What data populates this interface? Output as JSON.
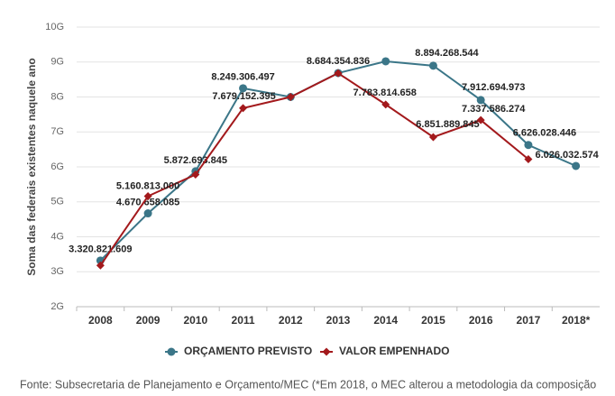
{
  "chart_data": {
    "type": "line",
    "y_label": "Soma das federais existentes naquele ano",
    "categories": [
      "2008",
      "2009",
      "2010",
      "2011",
      "2012",
      "2013",
      "2014",
      "2015",
      "2016",
      "2017",
      "2018*"
    ],
    "series": [
      {
        "name": "ORÇAMENTO PREVISTO",
        "color": "#3b7688",
        "marker": "circle",
        "values": [
          3320821609,
          4670658085,
          5872693845,
          8249306497,
          8000000000,
          8684354836,
          9020000000,
          8894268544,
          7912694973,
          6626028446,
          6026032574
        ],
        "value_labels": [
          "3.320.821.609",
          "4.670.658.085",
          "5.872.693.845",
          "8.249.306.497",
          null,
          "8.684.354.836",
          null,
          "8.894.268.544",
          "7.912.694.973",
          "6.626.028.446",
          "6.026.032.574"
        ]
      },
      {
        "name": "VALOR EMPENHADO",
        "color": "#a3191c",
        "marker": "diamond",
        "values": [
          3180000000,
          5160813000,
          5780000000,
          7679152395,
          8000000000,
          8680000000,
          7783814658,
          6851889845,
          7337586274,
          6220000000,
          null
        ],
        "value_labels": [
          null,
          "5.160.813.000",
          null,
          "7.679.152.395",
          null,
          null,
          "7.783.814.658",
          "6.851.889.845",
          "7.337.586.274",
          null,
          null
        ]
      }
    ],
    "ylim": [
      2000000000,
      10000000000
    ],
    "yticks": [
      {
        "value": 2000000000,
        "label": "2G"
      },
      {
        "value": 3000000000,
        "label": "3G"
      },
      {
        "value": 4000000000,
        "label": "4G"
      },
      {
        "value": 5000000000,
        "label": "5G"
      },
      {
        "value": 6000000000,
        "label": "6G"
      },
      {
        "value": 7000000000,
        "label": "7G"
      },
      {
        "value": 8000000000,
        "label": "8G"
      },
      {
        "value": 9000000000,
        "label": "9G"
      },
      {
        "value": 10000000000,
        "label": "10G"
      }
    ],
    "grid": true,
    "legend": "bottom",
    "footer": "Fonte: Subsecretaria de Planejamento e Orçamento/MEC (*Em 2018, o MEC alterou a metodologia da composição"
  }
}
